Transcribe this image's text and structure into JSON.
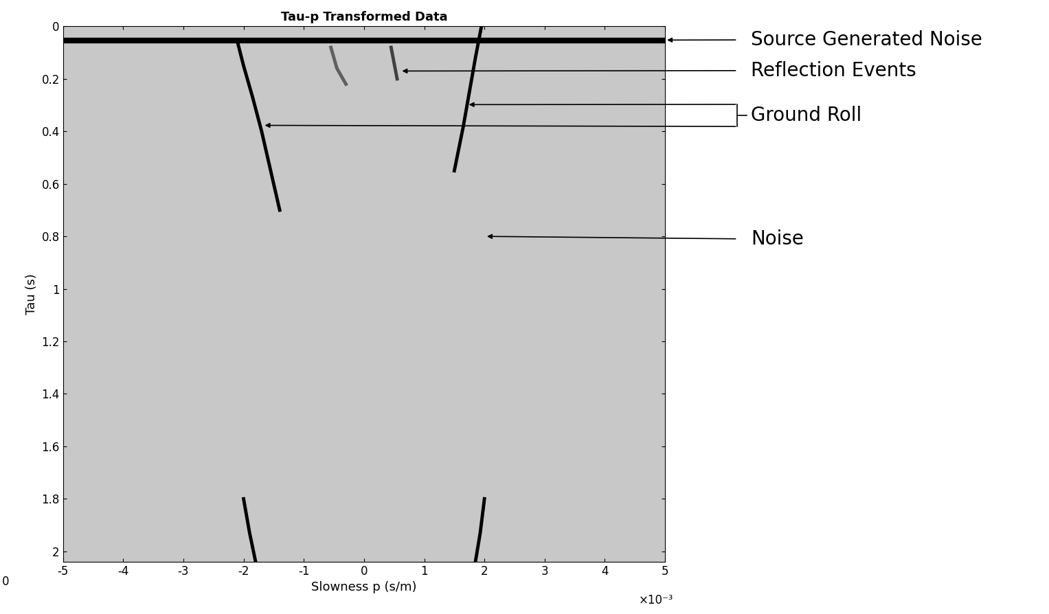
{
  "chart_data": {
    "type": "line",
    "title": "Tau-p Transformed Data",
    "x_label": "Slowness p (s/m)",
    "x_scale_note": "×10⁻³",
    "y_label": "Tau (s)",
    "xlim": [
      -5,
      5
    ],
    "xticks": [
      -5,
      -4,
      -3,
      -2,
      -1,
      0,
      1,
      2,
      3,
      4,
      5
    ],
    "ylim": [
      2.04,
      0
    ],
    "yticks": [
      0,
      0.2,
      0.4,
      0.6,
      0.8,
      1,
      1.2,
      1.4,
      1.6,
      1.8,
      2
    ],
    "series": [
      {
        "color": "#000000",
        "line_style": "solid",
        "x": [
          -5,
          5
        ],
        "values": [
          0.055,
          0.055
        ]
      },
      {
        "color": "#000000",
        "line_style": "solid",
        "x": [
          -2.1,
          -2.0,
          -1.85,
          -1.7,
          -1.55,
          -1.4
        ],
        "values": [
          0.06,
          0.15,
          0.27,
          0.4,
          0.55,
          0.7
        ]
      },
      {
        "color": "#000000",
        "line_style": "solid",
        "x": [
          1.95,
          1.85,
          1.75,
          1.65,
          1.5
        ],
        "values": [
          0.0,
          0.12,
          0.25,
          0.38,
          0.55
        ]
      },
      {
        "color": "#000000",
        "line_style": "solid",
        "x": [
          -2.0,
          -1.9,
          -1.8
        ],
        "values": [
          1.8,
          1.93,
          2.04
        ]
      },
      {
        "color": "#000000",
        "line_style": "solid",
        "x": [
          2.0,
          1.93,
          1.85
        ],
        "values": [
          1.8,
          1.93,
          2.04
        ]
      },
      {
        "color": "#404040",
        "line_style": "solid",
        "x": [
          0.45,
          0.5,
          0.55
        ],
        "values": [
          0.08,
          0.14,
          0.2
        ]
      },
      {
        "color": "#606060",
        "line_style": "solid",
        "x": [
          -0.55,
          -0.45,
          -0.3
        ],
        "values": [
          0.08,
          0.16,
          0.22
        ]
      }
    ],
    "annotations": [
      {
        "text": "Source Generated Noise",
        "targets": [
          [
            5,
            0.052
          ]
        ]
      },
      {
        "text": "Reflection Events",
        "targets": [
          [
            0.6,
            0.17
          ]
        ]
      },
      {
        "text": "Ground Roll",
        "targets": [
          [
            1.71,
            0.298
          ],
          [
            -1.68,
            0.377
          ]
        ]
      },
      {
        "text": "Noise",
        "targets": [
          [
            2.01,
            0.8
          ]
        ]
      }
    ],
    "extra_text": "0"
  }
}
